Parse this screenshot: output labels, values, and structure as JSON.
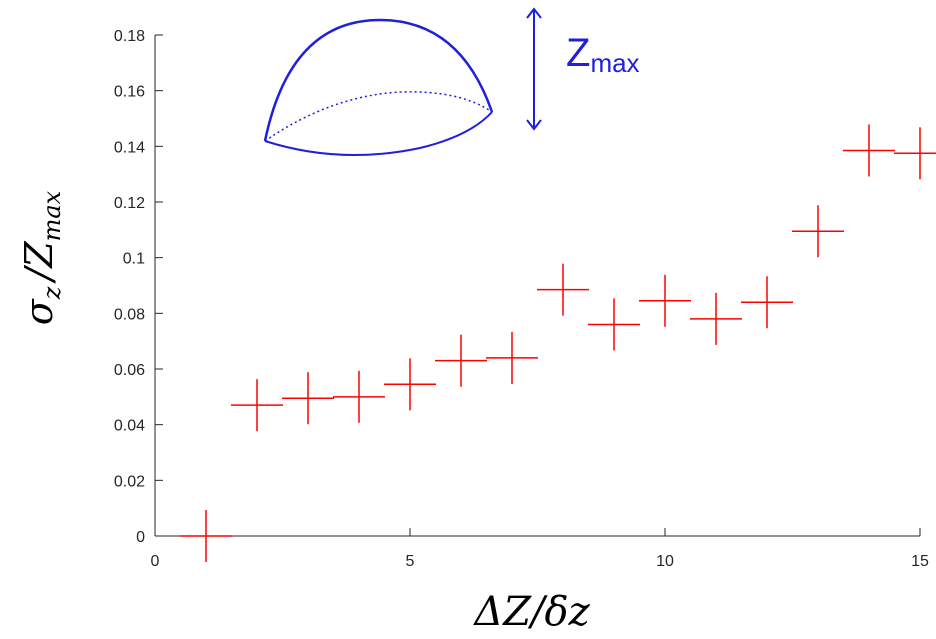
{
  "chart_data": {
    "type": "scatter",
    "marker": "plus",
    "marker_color": "#ff0000",
    "axis_color": "#262626",
    "xlabel_parts": {
      "main": "ΔZ/δz"
    },
    "ylabel_parts": {
      "sigma": "σ",
      "sub": "z",
      "mid": "/Z",
      "max": "max"
    },
    "xlim": [
      0,
      15
    ],
    "ylim": [
      0,
      0.18
    ],
    "xticks": [
      0,
      5,
      10,
      15
    ],
    "xtick_labels": [
      "0",
      "5",
      "10",
      "15"
    ],
    "yticks": [
      0,
      0.02,
      0.04,
      0.06,
      0.08,
      0.1,
      0.12,
      0.14,
      0.16,
      0.18
    ],
    "ytick_labels": [
      "0",
      "0.02",
      "0.04",
      "0.06",
      "0.08",
      "0.1",
      "0.12",
      "0.14",
      "0.16",
      "0.18"
    ],
    "grid": false,
    "series": [
      {
        "x": [
          1,
          2,
          3,
          4,
          5,
          6,
          7,
          8,
          9,
          10,
          11,
          12,
          13,
          14,
          15
        ],
        "values": [
          0,
          0.047,
          0.0495,
          0.05,
          0.0545,
          0.063,
          0.064,
          0.0885,
          0.076,
          0.0845,
          0.078,
          0.084,
          0.1095,
          0.1385,
          0.1375
        ]
      }
    ],
    "inset": {
      "label_main": "Z",
      "label_sub": "max",
      "color": "#1f1fdd",
      "icons": [
        "dome-shape-icon",
        "double-arrow-icon"
      ]
    }
  }
}
